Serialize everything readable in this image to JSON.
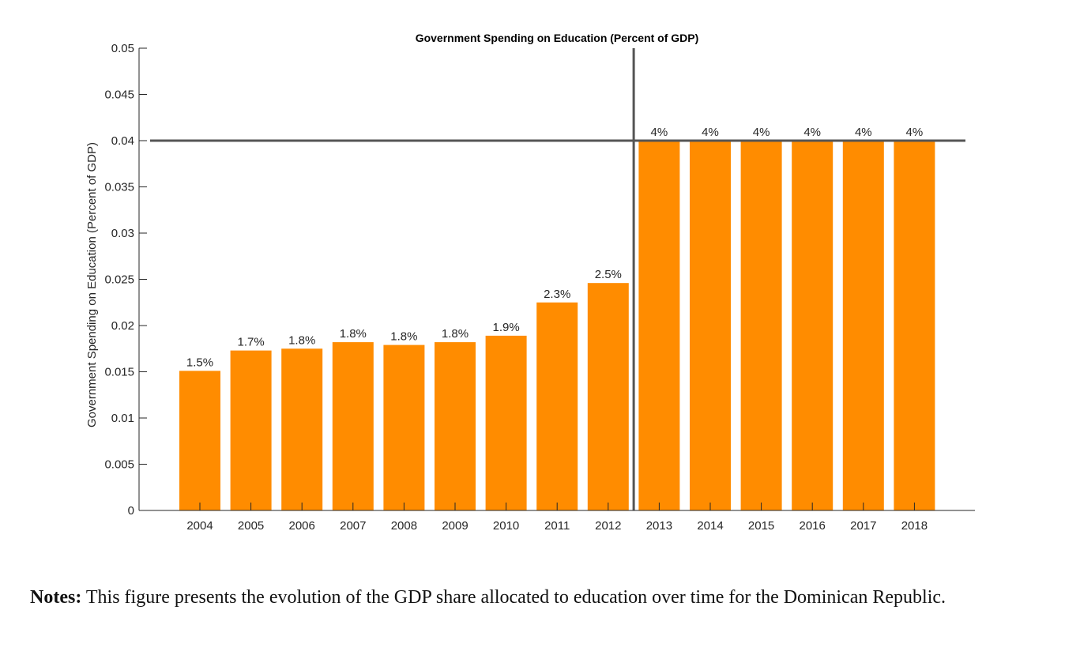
{
  "chart_data": {
    "type": "bar",
    "title": "Government Spending on Education (Percent of GDP)",
    "xlabel": "",
    "ylabel": "Government Spending on Education (Percent of GDP)",
    "categories": [
      "2004",
      "2005",
      "2006",
      "2007",
      "2008",
      "2009",
      "2010",
      "2011",
      "2012",
      "2013",
      "2014",
      "2015",
      "2016",
      "2017",
      "2018"
    ],
    "values": [
      0.0151,
      0.0173,
      0.0175,
      0.0182,
      0.0179,
      0.0182,
      0.0189,
      0.0225,
      0.0246,
      0.04,
      0.04,
      0.04,
      0.04,
      0.04,
      0.04
    ],
    "data_labels": [
      "1.5%",
      "1.7%",
      "1.8%",
      "1.8%",
      "1.8%",
      "1.8%",
      "1.9%",
      "2.3%",
      "2.5%",
      "4%",
      "4%",
      "4%",
      "4%",
      "4%",
      "4%"
    ],
    "ylim": [
      0,
      0.05
    ],
    "yticks": [
      0,
      0.005,
      0.01,
      0.015,
      0.02,
      0.025,
      0.03,
      0.035,
      0.04,
      0.045,
      0.05
    ],
    "ytick_labels": [
      "0",
      "0.005",
      "0.01",
      "0.015",
      "0.02",
      "0.025",
      "0.03",
      "0.035",
      "0.04",
      "0.045",
      "0.05"
    ],
    "reference_lines": {
      "horizontal_y": 0.04,
      "vertical_between": [
        "2012",
        "2013"
      ]
    },
    "grid": false,
    "bar_color": "#FF8C00",
    "reference_line_color": "#555555"
  },
  "notes": {
    "label": "Notes:",
    "text": " This figure presents the evolution of the GDP share allocated to education over time for the Dominican Republic."
  }
}
